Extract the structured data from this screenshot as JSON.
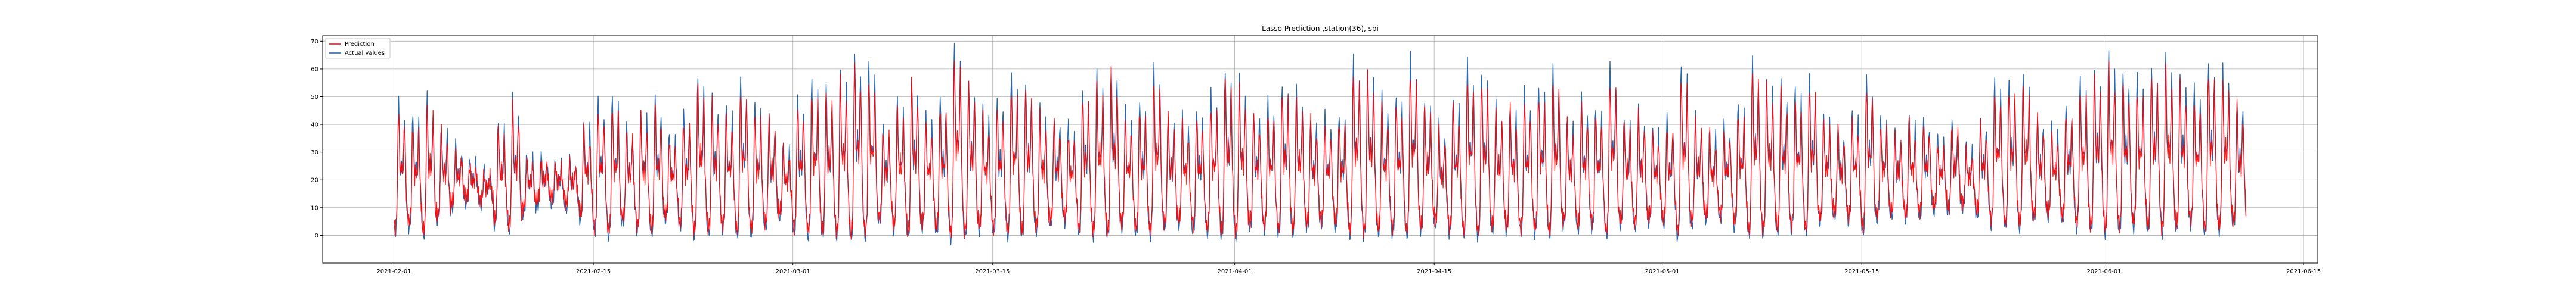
{
  "chart_data": {
    "type": "line",
    "title": "Lasso Prediction ,station(36), sbi",
    "xlabel": "",
    "ylabel": "",
    "x_range": [
      "2021-01-27",
      "2021-06-16"
    ],
    "ylim": [
      -10,
      72
    ],
    "x_ticks": [
      "2021-02-01",
      "2021-02-15",
      "2021-03-01",
      "2021-03-15",
      "2021-04-01",
      "2021-04-15",
      "2021-05-01",
      "2021-05-15",
      "2021-06-01",
      "2021-06-15"
    ],
    "y_ticks": [
      0,
      10,
      20,
      30,
      40,
      50,
      60,
      70
    ],
    "grid": true,
    "legend": "top-left",
    "x_start": "2021-02-01",
    "x_end": "2021-06-11",
    "sampling": "hourly",
    "series": [
      {
        "name": "Prediction",
        "color": "#ff0000",
        "daily_peaks": [
          45,
          40,
          47,
          37,
          30,
          25,
          22,
          38,
          46,
          28,
          27,
          25,
          26,
          38,
          45,
          47,
          37,
          42,
          46,
          35,
          41,
          53,
          47,
          44,
          53,
          44,
          41,
          31,
          47,
          52,
          51,
          55,
          61,
          57,
          38,
          45,
          54,
          41,
          47,
          64,
          53,
          43,
          47,
          53,
          52,
          43,
          41,
          37,
          50,
          54,
          58,
          42,
          46,
          55,
          42,
          40,
          43,
          47,
          56,
          52,
          43,
          45,
          52,
          48,
          41,
          40,
          42,
          58,
          57,
          46,
          48,
          59,
          46,
          37,
          47,
          57,
          55,
          44,
          45,
          48,
          51,
          55,
          40,
          46,
          44,
          56,
          40,
          43,
          37,
          40,
          57,
          41,
          36,
          38,
          45,
          59,
          53,
          52,
          50,
          54,
          41,
          37,
          42,
          54,
          40,
          36,
          40,
          40,
          33,
          39,
          30,
          40,
          52,
          53,
          53,
          41,
          37,
          45,
          52,
          56,
          60,
          55,
          53,
          57,
          59,
          55,
          49,
          59,
          55,
          46,
          47
        ],
        "daily_lows": [
          3,
          5,
          2,
          8,
          12,
          14,
          13,
          6,
          4,
          10,
          13,
          14,
          12,
          8,
          3,
          2,
          7,
          4,
          3,
          8,
          5,
          2,
          3,
          4,
          2,
          3,
          5,
          9,
          3,
          2,
          2,
          2,
          1,
          2,
          7,
          4,
          2,
          5,
          3,
          1,
          2,
          4,
          3,
          2,
          2,
          4,
          6,
          7,
          3,
          2,
          2,
          5,
          3,
          2,
          5,
          6,
          4,
          3,
          2,
          2,
          5,
          4,
          3,
          3,
          5,
          6,
          5,
          2,
          2,
          3,
          3,
          2,
          4,
          6,
          3,
          2,
          2,
          4,
          4,
          3,
          3,
          2,
          6,
          4,
          5,
          2,
          6,
          5,
          7,
          6,
          2,
          6,
          8,
          8,
          5,
          2,
          3,
          3,
          4,
          3,
          7,
          9,
          7,
          3,
          8,
          9,
          8,
          9,
          11,
          10,
          12,
          9,
          6,
          5,
          5,
          8,
          9,
          7,
          5,
          4,
          3,
          4,
          5,
          4,
          3,
          4,
          6,
          3,
          4,
          6,
          6
        ]
      },
      {
        "name": "Actual values",
        "color": "#1f5fa8",
        "daily_peaks": [
          48,
          45,
          50,
          40,
          33,
          28,
          24,
          42,
          50,
          30,
          29,
          27,
          28,
          42,
          49,
          51,
          40,
          46,
          50,
          37,
          45,
          57,
          51,
          47,
          57,
          48,
          44,
          33,
          51,
          56,
          55,
          59,
          66,
          62,
          41,
          49,
          58,
          44,
          51,
          68,
          57,
          46,
          51,
          57,
          56,
          46,
          44,
          40,
          54,
          58,
          63,
          45,
          50,
          60,
          45,
          43,
          47,
          51,
          61,
          56,
          46,
          48,
          56,
          52,
          44,
          43,
          45,
          63,
          62,
          50,
          52,
          64,
          50,
          40,
          51,
          62,
          60,
          47,
          48,
          52,
          55,
          60,
          43,
          50,
          47,
          61,
          43,
          46,
          40,
          43,
          62,
          44,
          39,
          41,
          48,
          64,
          57,
          56,
          54,
          58,
          44,
          40,
          45,
          58,
          43,
          39,
          43,
          43,
          36,
          42,
          33,
          43,
          56,
          57,
          57,
          44,
          40,
          48,
          56,
          61,
          65,
          60,
          57,
          62,
          64,
          60,
          53,
          64,
          60,
          50,
          51
        ],
        "daily_lows": [
          1,
          3,
          0,
          6,
          10,
          12,
          11,
          4,
          2,
          8,
          11,
          12,
          10,
          6,
          1,
          0,
          5,
          2,
          1,
          6,
          3,
          0,
          1,
          2,
          0,
          1,
          3,
          7,
          1,
          0,
          0,
          0,
          -1,
          0,
          5,
          2,
          0,
          3,
          1,
          -1,
          0,
          2,
          1,
          0,
          0,
          2,
          4,
          5,
          1,
          0,
          0,
          3,
          1,
          0,
          3,
          4,
          2,
          1,
          0,
          0,
          3,
          2,
          1,
          1,
          3,
          4,
          3,
          0,
          0,
          1,
          1,
          0,
          2,
          4,
          1,
          0,
          0,
          2,
          2,
          1,
          1,
          0,
          4,
          2,
          3,
          0,
          4,
          3,
          5,
          4,
          0,
          4,
          6,
          6,
          3,
          0,
          1,
          1,
          2,
          1,
          5,
          7,
          5,
          1,
          6,
          7,
          6,
          7,
          9,
          8,
          10,
          7,
          4,
          3,
          3,
          6,
          7,
          5,
          3,
          2,
          1,
          2,
          3,
          2,
          1,
          2,
          4,
          1,
          2,
          4,
          4
        ]
      }
    ]
  }
}
